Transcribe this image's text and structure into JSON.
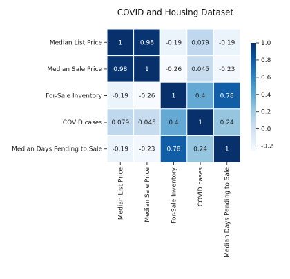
{
  "chart_data": {
    "type": "heatmap",
    "title": "COVID and Housing Dataset",
    "row_labels": [
      "Median List Price",
      "Median Sale Price",
      "For-Sale Inventory",
      "COVID cases",
      "Median Days Pending to Sale"
    ],
    "col_labels": [
      "Median List Price",
      "Median Sale Price",
      "For-Sale Inventory",
      "COVID cases",
      "Median Days Pending to Sale"
    ],
    "values": [
      [
        1,
        0.98,
        -0.19,
        0.079,
        -0.19
      ],
      [
        0.98,
        1,
        -0.26,
        0.045,
        -0.23
      ],
      [
        -0.19,
        -0.26,
        1,
        0.4,
        0.78
      ],
      [
        0.079,
        0.045,
        0.4,
        1,
        0.24
      ],
      [
        -0.19,
        -0.23,
        0.78,
        0.24,
        1
      ]
    ],
    "annotations": [
      [
        "1",
        "0.98",
        "-0.19",
        "0.079",
        "-0.19"
      ],
      [
        "0.98",
        "1",
        "-0.26",
        "0.045",
        "-0.23"
      ],
      [
        "-0.19",
        "-0.26",
        "1",
        "0.4",
        "0.78"
      ],
      [
        "0.079",
        "0.045",
        "0.4",
        "1",
        "0.24"
      ],
      [
        "-0.19",
        "-0.23",
        "0.78",
        "0.24",
        "1"
      ]
    ],
    "colormap": "Blues",
    "colorbar": {
      "range": [
        -0.26,
        1.0
      ],
      "ticks": [
        1.0,
        0.8,
        0.6,
        0.4,
        0.2,
        0.0,
        -0.2
      ],
      "tick_labels": [
        "1.0",
        "0.8",
        "0.6",
        "0.4",
        "0.2",
        "0.0",
        "-0.2"
      ]
    },
    "grid": false
  }
}
